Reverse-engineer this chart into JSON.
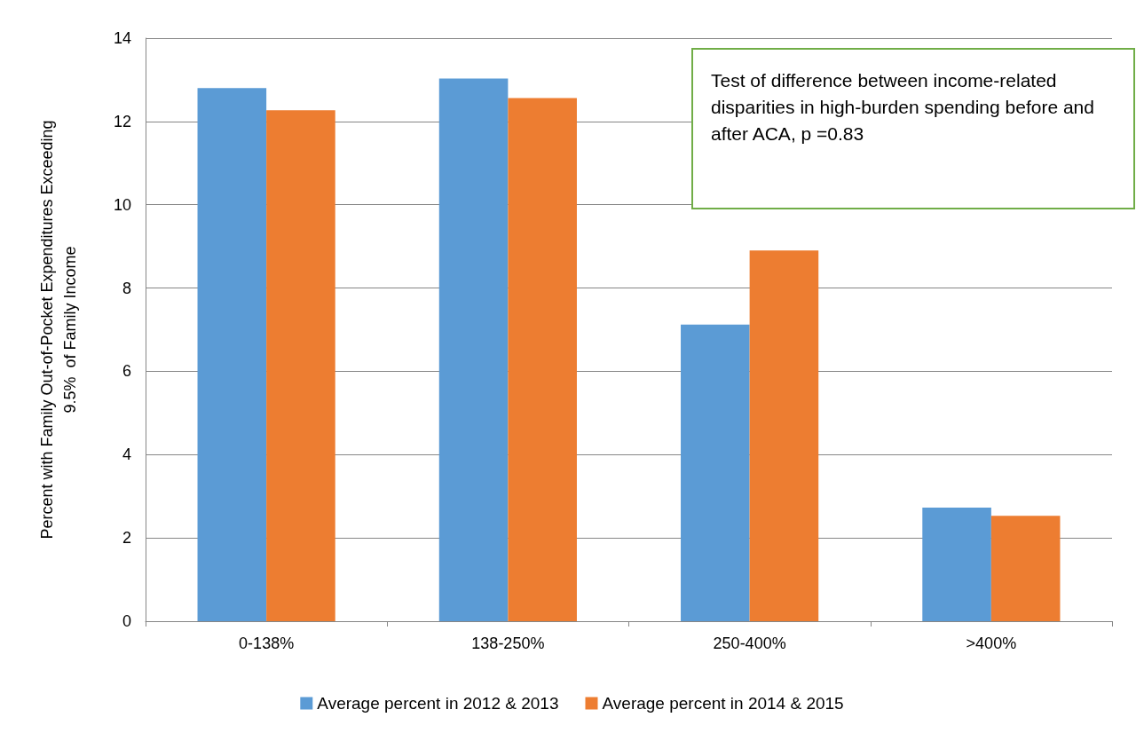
{
  "chart_data": {
    "type": "bar",
    "categories": [
      "0-138%",
      "138-250%",
      "250-400%",
      ">400%"
    ],
    "ylabel": "Percent with Family Out-of-Pocket Expenditures Exceeding\n9.5%  of Family Income",
    "series": [
      {
        "name": "Average percent in 2012 & 2013",
        "color": "#5b9bd5",
        "values": [
          12.8,
          13.03,
          7.12,
          2.73
        ]
      },
      {
        "name": "Average percent in 2014 & 2015",
        "color": "#ed7d31",
        "values": [
          12.27,
          12.56,
          8.9,
          2.53
        ]
      }
    ],
    "ylim": [
      0,
      14
    ],
    "yticks": [
      0,
      2,
      4,
      6,
      8,
      10,
      12,
      14
    ],
    "grid": "y",
    "legend": "bottom",
    "annotations": [
      "Test of difference between income-related disparities in high-burden spending before and after ACA, p =0.83"
    ]
  }
}
